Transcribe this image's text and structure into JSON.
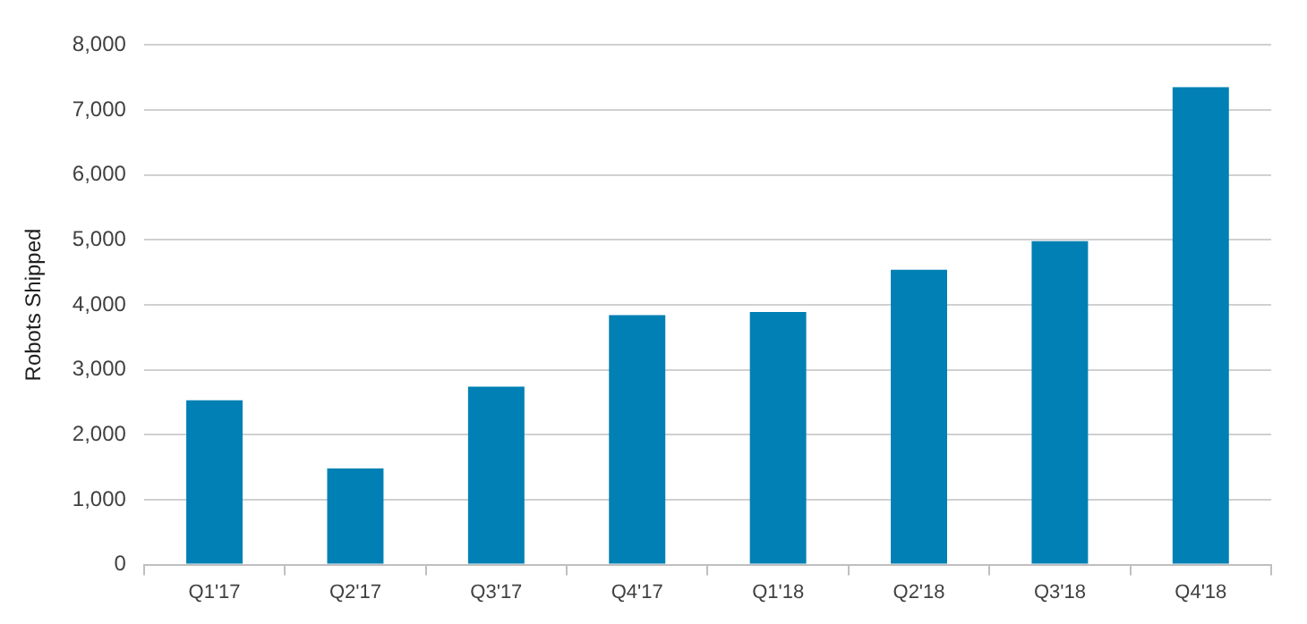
{
  "chart_data": {
    "type": "bar",
    "ylabel": "Robots Shipped",
    "categories": [
      "Q1'17",
      "Q2'17",
      "Q3'17",
      "Q4'17",
      "Q1'18",
      "Q2'18",
      "Q3'18",
      "Q4'18"
    ],
    "values": [
      2530,
      1480,
      2740,
      3840,
      3890,
      4540,
      4980,
      7350
    ],
    "color": "#0080b4",
    "ylim": [
      0,
      8000
    ],
    "yticks": [
      {
        "value": 0,
        "label": "0"
      },
      {
        "value": 1000,
        "label": "1,000"
      },
      {
        "value": 2000,
        "label": "2,000"
      },
      {
        "value": 3000,
        "label": "3,000"
      },
      {
        "value": 4000,
        "label": "4,000"
      },
      {
        "value": 5000,
        "label": "5,000"
      },
      {
        "value": 6000,
        "label": "6,000"
      },
      {
        "value": 7000,
        "label": "7,000"
      },
      {
        "value": 8000,
        "label": "8,000"
      }
    ],
    "grid": "y"
  }
}
